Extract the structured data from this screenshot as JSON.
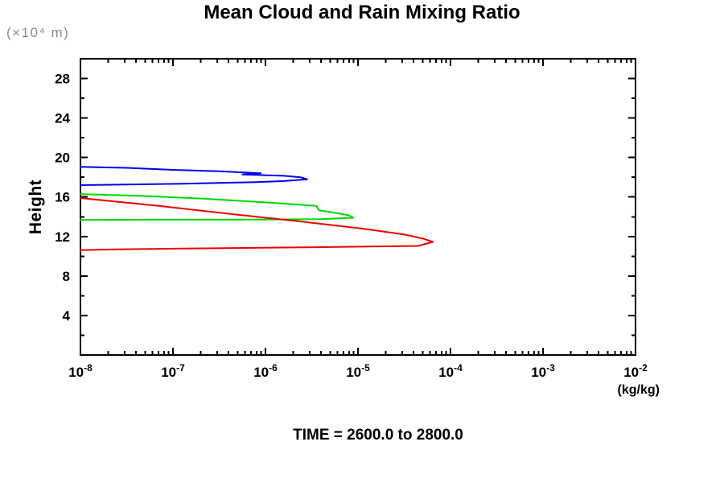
{
  "chart_data": {
    "type": "line",
    "title": "Mean Cloud and Rain Mixing Ratio",
    "subtitle": "TIME = 2600.0 to 2800.0",
    "ylabel": "Height",
    "y_unit_label": "(×10⁴ m)",
    "x_unit_label": "(kg/kg)",
    "x_scale": "log10",
    "xlim_exponents": [
      -8,
      -2
    ],
    "x_tick_exponents": [
      -8,
      -7,
      -6,
      -5,
      -4,
      -3,
      -2
    ],
    "x_tick_base": "10",
    "x_minor_mantissas": [
      2,
      3,
      4,
      5,
      6,
      7,
      8,
      9
    ],
    "ylim": [
      0,
      30
    ],
    "y_major_ticks": [
      4,
      8,
      12,
      16,
      20,
      24,
      28
    ],
    "y_minor_ticks": [
      2,
      6,
      10,
      14,
      18,
      22,
      26
    ],
    "grid": false,
    "legend": "none",
    "frame_color": "#000000",
    "tick_label_color": "#000000",
    "series": [
      {
        "name": "blue-contour",
        "color": "#0000ee",
        "points": [
          [
            -8.0,
            19.05
          ],
          [
            -7.5,
            18.95
          ],
          [
            -7.0,
            18.75
          ],
          [
            -6.5,
            18.6
          ],
          [
            -6.05,
            18.4
          ],
          [
            -6.25,
            18.28
          ],
          [
            -5.8,
            18.15
          ],
          [
            -5.62,
            18.0
          ],
          [
            -5.55,
            17.8
          ],
          [
            -5.8,
            17.62
          ],
          [
            -6.1,
            17.5
          ],
          [
            -6.9,
            17.35
          ],
          [
            -7.6,
            17.25
          ],
          [
            -8.0,
            17.2
          ]
        ]
      },
      {
        "name": "green-contour",
        "color": "#00d800",
        "points": [
          [
            -8.0,
            16.3
          ],
          [
            -7.3,
            16.1
          ],
          [
            -6.6,
            15.8
          ],
          [
            -5.9,
            15.4
          ],
          [
            -5.45,
            15.1
          ],
          [
            -5.42,
            14.65
          ],
          [
            -5.25,
            14.4
          ],
          [
            -5.1,
            14.15
          ],
          [
            -5.05,
            13.9
          ],
          [
            -5.4,
            13.75
          ],
          [
            -6.3,
            13.7
          ],
          [
            -7.2,
            13.7
          ],
          [
            -8.0,
            13.68
          ]
        ]
      },
      {
        "name": "red-contour",
        "color": "#ee0000",
        "points": [
          [
            -8.0,
            15.9
          ],
          [
            -7.15,
            15.1
          ],
          [
            -6.3,
            14.2
          ],
          [
            -5.6,
            13.5
          ],
          [
            -4.95,
            12.8
          ],
          [
            -4.5,
            12.2
          ],
          [
            -4.3,
            11.8
          ],
          [
            -4.19,
            11.45
          ],
          [
            -4.35,
            11.05
          ],
          [
            -4.8,
            11.0
          ],
          [
            -5.6,
            10.9
          ],
          [
            -6.7,
            10.8
          ],
          [
            -7.6,
            10.7
          ],
          [
            -8.0,
            10.62
          ]
        ]
      }
    ]
  }
}
